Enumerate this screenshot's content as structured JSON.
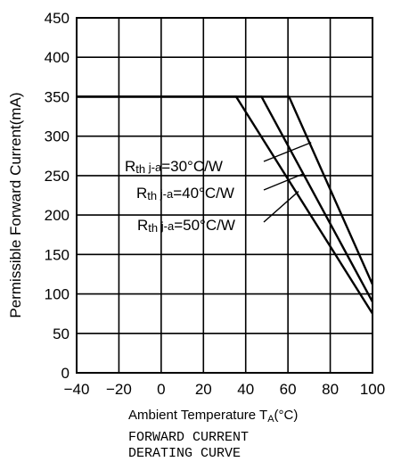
{
  "chart_data": {
    "type": "line",
    "ylabel": "Permissible Forward Current(mA)",
    "xlabel": "Ambient Temperature T",
    "xlabel_sub": "A",
    "xlabel_unit": "(°C)",
    "caption_lines": [
      "FORWARD CURRENT",
      "DERATING CURVE"
    ],
    "xlim": [
      -40,
      100
    ],
    "ylim": [
      0,
      450
    ],
    "x_ticks": [
      -40,
      -20,
      0,
      20,
      40,
      60,
      80,
      100
    ],
    "y_ticks": [
      0,
      50,
      100,
      150,
      200,
      250,
      300,
      350,
      400,
      450
    ],
    "x_tick_labels": [
      "−40",
      "−20",
      "0",
      "20",
      "40",
      "60",
      "80",
      "100"
    ],
    "y_tick_labels": [
      "0",
      "50",
      "100",
      "150",
      "200",
      "250",
      "300",
      "350",
      "400",
      "450"
    ],
    "grid": true,
    "series": [
      {
        "name": "30°C/W",
        "points": [
          [
            -40,
            350
          ],
          [
            60.5,
            350
          ],
          [
            100,
            112
          ]
        ]
      },
      {
        "name": "40°C/W",
        "points": [
          [
            -40,
            350
          ],
          [
            47.5,
            350
          ],
          [
            100,
            90
          ]
        ]
      },
      {
        "name": "50°C/W",
        "points": [
          [
            -40,
            350
          ],
          [
            35.5,
            350
          ],
          [
            100,
            75
          ]
        ]
      }
    ],
    "annotations": [
      {
        "prefix": "R",
        "sub": "th",
        "mid": " j-a",
        "value": "=30°C/W",
        "series": "30°C/W",
        "target": [
          71,
          292
        ]
      },
      {
        "prefix": "R",
        "sub": "th",
        "mid": " j-a",
        "value": "=40°C/W",
        "series": "40°C/W",
        "target": [
          67,
          252
        ]
      },
      {
        "prefix": "R",
        "sub": "th",
        "mid": " j-a",
        "value": "=50°C/W",
        "series": "50°C/W",
        "target": [
          65,
          230
        ]
      }
    ]
  }
}
